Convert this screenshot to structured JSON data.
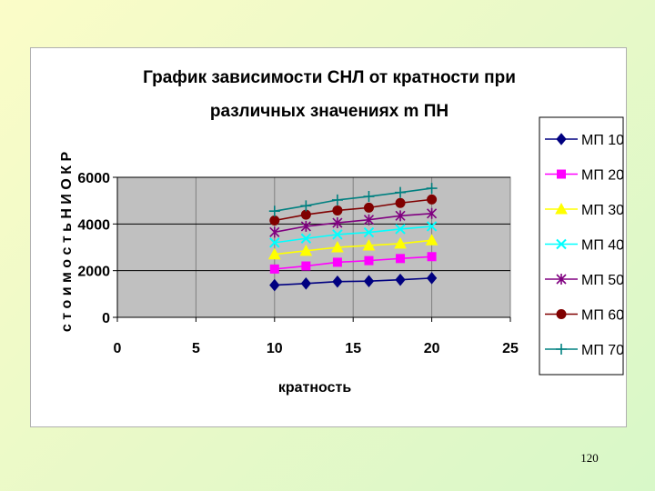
{
  "page_number": "120",
  "chart_data": {
    "type": "line",
    "title_line1": "График зависимости СНЛ от кратности при",
    "title_line2": "различных значениях m ПН",
    "xlabel": "кратность",
    "ylabel": "с т о и м о с т ь  Н И О К Р",
    "xlim": [
      0,
      25
    ],
    "ylim": [
      0,
      6000
    ],
    "x_ticks": [
      "0",
      "5",
      "10",
      "15",
      "20",
      "25"
    ],
    "y_ticks": [
      "0",
      "2000",
      "4000",
      "6000"
    ],
    "grid": true,
    "plot_background": "#c0c0c0",
    "legend_position": "right",
    "x": [
      10,
      12,
      14,
      16,
      18,
      20
    ],
    "series": [
      {
        "name": "МП 10",
        "color": "#000080",
        "marker": "diamond",
        "values": [
          1380,
          1450,
          1530,
          1550,
          1610,
          1680
        ]
      },
      {
        "name": "МП 20",
        "color": "#ff00ff",
        "marker": "square",
        "values": [
          2070,
          2200,
          2360,
          2430,
          2520,
          2600
        ]
      },
      {
        "name": "МП 30",
        "color": "#ffff00",
        "marker": "triangle",
        "values": [
          2700,
          2850,
          3000,
          3080,
          3160,
          3300
        ]
      },
      {
        "name": "МП 40",
        "color": "#00ffff",
        "marker": "x",
        "values": [
          3200,
          3380,
          3550,
          3640,
          3780,
          3900
        ]
      },
      {
        "name": "МП 50",
        "color": "#800080",
        "marker": "star",
        "values": [
          3650,
          3900,
          4050,
          4180,
          4350,
          4450
        ]
      },
      {
        "name": "МП 60",
        "color": "#800000",
        "marker": "circle",
        "values": [
          4150,
          4400,
          4580,
          4700,
          4900,
          5050
        ]
      },
      {
        "name": "МП 70",
        "color": "#008080",
        "marker": "plus",
        "values": [
          4550,
          4780,
          5030,
          5180,
          5350,
          5530
        ]
      }
    ]
  }
}
